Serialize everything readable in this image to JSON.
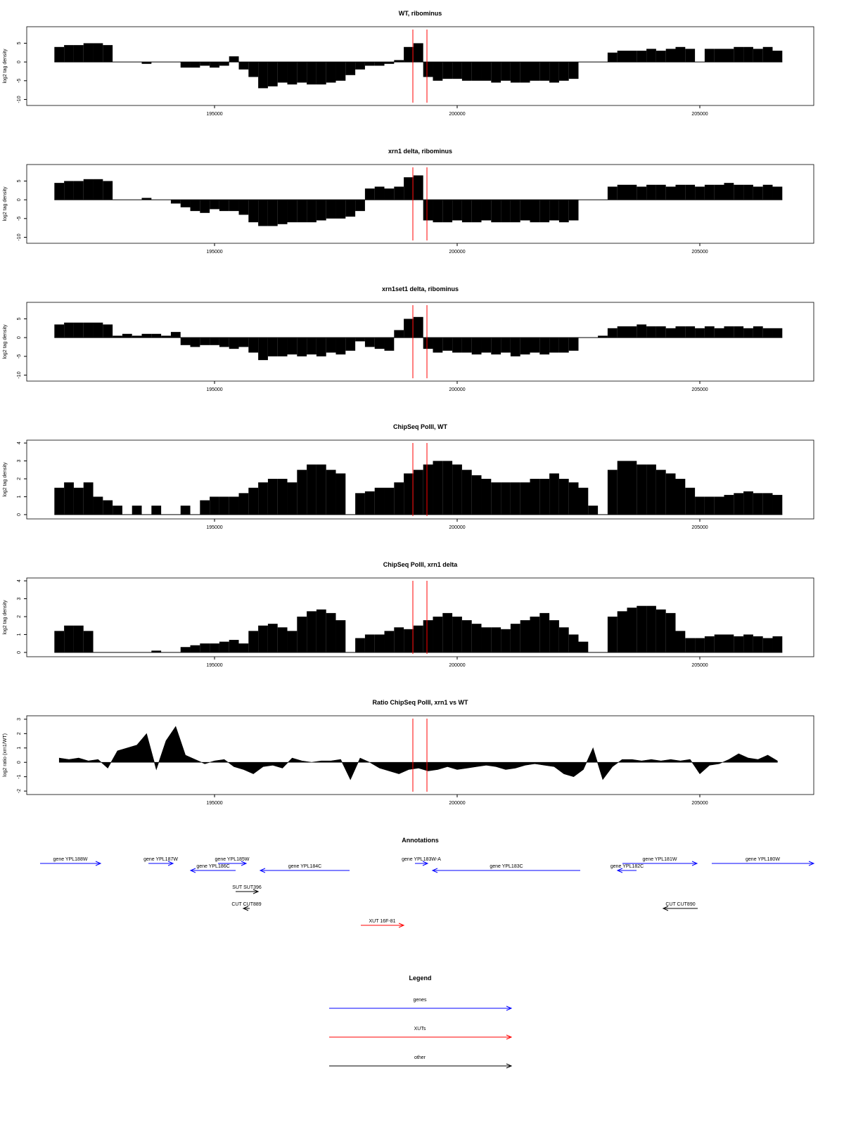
{
  "chart_data": [
    {
      "type": "bar",
      "title": "WT, ribominus",
      "ylabel": "log2 tag density",
      "color": "#000000",
      "xlim": [
        191130,
        207348
      ],
      "xticks": [
        195000,
        200000,
        205000
      ],
      "ylim": [
        -11.6,
        9.4
      ],
      "yticks": [
        -10,
        -5,
        0,
        5
      ],
      "highlight_x": [
        199087,
        199377
      ],
      "highlight_color": "#ff0000",
      "x": [
        191800,
        192000,
        192200,
        192400,
        192600,
        192800,
        193000,
        193200,
        193400,
        193600,
        193800,
        194000,
        194200,
        194400,
        194600,
        194800,
        195000,
        195200,
        195400,
        195600,
        195800,
        196000,
        196200,
        196400,
        196600,
        196800,
        197000,
        197200,
        197400,
        197600,
        197800,
        198000,
        198200,
        198400,
        198600,
        198800,
        199000,
        199200,
        199400,
        199600,
        199800,
        200000,
        200200,
        200400,
        200600,
        200800,
        201000,
        201200,
        201400,
        201600,
        201800,
        202000,
        202200,
        202400,
        202600,
        202800,
        203000,
        203200,
        203400,
        203600,
        203800,
        204000,
        204200,
        204400,
        204600,
        204800,
        205000,
        205200,
        205400,
        205600,
        205800,
        206000,
        206200,
        206400,
        206600
      ],
      "values": [
        4,
        4.5,
        4.5,
        5,
        5,
        4.5,
        0,
        0,
        0,
        -0.5,
        0,
        0,
        0,
        -1.5,
        -1.5,
        -1,
        -1.5,
        -1,
        1.5,
        -2,
        -4,
        -7,
        -6.5,
        -5.5,
        -6,
        -5.5,
        -6,
        -6,
        -5.5,
        -5,
        -3.5,
        -2,
        -1,
        -1,
        -0.5,
        0.5,
        4,
        5,
        -4,
        -5,
        -4.5,
        -4.5,
        -5,
        -5,
        -5,
        -5.5,
        -5,
        -5.5,
        -5.5,
        -5,
        -5,
        -5.5,
        -5,
        -4.5,
        0,
        0,
        0,
        2.5,
        3,
        3,
        3,
        3.5,
        3,
        3.5,
        4,
        3.5,
        0,
        3.5,
        3.5,
        3.5,
        4,
        4,
        3.5,
        4,
        3
      ]
    },
    {
      "type": "bar",
      "title": "xrn1 delta, ribominus",
      "ylabel": "log2 tag density",
      "color": "#000000",
      "xlim": [
        191130,
        207348
      ],
      "xticks": [
        195000,
        200000,
        205000
      ],
      "ylim": [
        -11.6,
        9.4
      ],
      "yticks": [
        -10,
        -5,
        0,
        5
      ],
      "highlight_x": [
        199087,
        199377
      ],
      "highlight_color": "#ff0000",
      "x": [
        191800,
        192000,
        192200,
        192400,
        192600,
        192800,
        193000,
        193200,
        193400,
        193600,
        193800,
        194000,
        194200,
        194400,
        194600,
        194800,
        195000,
        195200,
        195400,
        195600,
        195800,
        196000,
        196200,
        196400,
        196600,
        196800,
        197000,
        197200,
        197400,
        197600,
        197800,
        198000,
        198200,
        198400,
        198600,
        198800,
        199000,
        199200,
        199400,
        199600,
        199800,
        200000,
        200200,
        200400,
        200600,
        200800,
        201000,
        201200,
        201400,
        201600,
        201800,
        202000,
        202200,
        202400,
        202600,
        202800,
        203000,
        203200,
        203400,
        203600,
        203800,
        204000,
        204200,
        204400,
        204600,
        204800,
        205000,
        205200,
        205400,
        205600,
        205800,
        206000,
        206200,
        206400,
        206600
      ],
      "values": [
        4.5,
        5,
        5,
        5.5,
        5.5,
        5,
        0,
        0,
        0,
        0.5,
        0,
        0,
        -1,
        -2,
        -3,
        -3.5,
        -2.5,
        -3,
        -3,
        -4,
        -6,
        -7,
        -7,
        -6.5,
        -6,
        -6,
        -6,
        -5.5,
        -5,
        -5,
        -4.5,
        -3,
        3,
        3.5,
        3,
        3.5,
        6,
        6.5,
        -5.5,
        -6,
        -6,
        -5.5,
        -6,
        -6,
        -5.5,
        -6,
        -6,
        -6,
        -5.5,
        -6,
        -6,
        -5.5,
        -6,
        -5.5,
        0,
        0,
        0,
        3.5,
        4,
        4,
        3.5,
        4,
        4,
        3.5,
        4,
        4,
        3.5,
        4,
        4,
        4.5,
        4,
        4,
        3.5,
        4,
        3.5
      ]
    },
    {
      "type": "bar",
      "title": "xrn1set1 delta, ribominus",
      "ylabel": "log2 tag density",
      "color": "#000000",
      "xlim": [
        191130,
        207348
      ],
      "xticks": [
        195000,
        200000,
        205000
      ],
      "ylim": [
        -11.6,
        9.4
      ],
      "yticks": [
        -10,
        -5,
        0,
        5
      ],
      "highlight_x": [
        199087,
        199377
      ],
      "highlight_color": "#ff0000",
      "x": [
        191800,
        192000,
        192200,
        192400,
        192600,
        192800,
        193000,
        193200,
        193400,
        193600,
        193800,
        194000,
        194200,
        194400,
        194600,
        194800,
        195000,
        195200,
        195400,
        195600,
        195800,
        196000,
        196200,
        196400,
        196600,
        196800,
        197000,
        197200,
        197400,
        197600,
        197800,
        198000,
        198200,
        198400,
        198600,
        198800,
        199000,
        199200,
        199400,
        199600,
        199800,
        200000,
        200200,
        200400,
        200600,
        200800,
        201000,
        201200,
        201400,
        201600,
        201800,
        202000,
        202200,
        202400,
        202600,
        202800,
        203000,
        203200,
        203400,
        203600,
        203800,
        204000,
        204200,
        204400,
        204600,
        204800,
        205000,
        205200,
        205400,
        205600,
        205800,
        206000,
        206200,
        206400,
        206600
      ],
      "values": [
        3.5,
        4,
        4,
        4,
        4,
        3.5,
        0.5,
        1,
        0.5,
        1,
        1,
        0.5,
        1.5,
        -2,
        -2.5,
        -2,
        -2,
        -2.5,
        -3,
        -2.5,
        -4,
        -6,
        -5,
        -5,
        -4.5,
        -5,
        -4.5,
        -5,
        -4,
        -4.5,
        -3.5,
        -1,
        -2.5,
        -3,
        -3.5,
        2,
        5,
        5.5,
        -3,
        -4,
        -3.5,
        -4,
        -4,
        -4.5,
        -4,
        -4.5,
        -4,
        -5,
        -4.5,
        -4,
        -4.5,
        -4,
        -4,
        -3.5,
        0,
        0,
        0.5,
        2.5,
        3,
        3,
        3.5,
        3,
        3,
        2.5,
        3,
        3,
        2.5,
        3,
        2.5,
        3,
        3,
        2.5,
        3,
        2.5,
        2.5
      ]
    },
    {
      "type": "bar",
      "title": "ChipSeq PolII, WT",
      "ylabel": "log2 tag density",
      "color": "#000000",
      "xlim": [
        191130,
        207348
      ],
      "xticks": [
        195000,
        200000,
        205000
      ],
      "ylim": [
        -0.24,
        4.16
      ],
      "yticks": [
        0,
        1,
        2,
        3,
        4
      ],
      "highlight_x": [
        199087,
        199377
      ],
      "highlight_color": "#ff0000",
      "x": [
        191800,
        192000,
        192200,
        192400,
        192600,
        192800,
        193000,
        193200,
        193400,
        193600,
        193800,
        194000,
        194200,
        194400,
        194600,
        194800,
        195000,
        195200,
        195400,
        195600,
        195800,
        196000,
        196200,
        196400,
        196600,
        196800,
        197000,
        197200,
        197400,
        197600,
        197800,
        198000,
        198200,
        198400,
        198600,
        198800,
        199000,
        199200,
        199400,
        199600,
        199800,
        200000,
        200200,
        200400,
        200600,
        200800,
        201000,
        201200,
        201400,
        201600,
        201800,
        202000,
        202200,
        202400,
        202600,
        202800,
        203000,
        203200,
        203400,
        203600,
        203800,
        204000,
        204200,
        204400,
        204600,
        204800,
        205000,
        205200,
        205400,
        205600,
        205800,
        206000,
        206200,
        206400,
        206600
      ],
      "values": [
        1.5,
        1.8,
        1.5,
        1.8,
        1,
        0.8,
        0.5,
        0,
        0.5,
        0,
        0.5,
        0,
        0,
        0.5,
        0,
        0.8,
        1,
        1,
        1,
        1.2,
        1.5,
        1.8,
        2,
        2,
        1.8,
        2.5,
        2.8,
        2.8,
        2.5,
        2.3,
        0,
        1.2,
        1.3,
        1.5,
        1.5,
        1.8,
        2.3,
        2.5,
        2.8,
        3,
        3,
        2.8,
        2.5,
        2.2,
        2,
        1.8,
        1.8,
        1.8,
        1.8,
        2,
        2,
        2.3,
        2,
        1.8,
        1.5,
        0.5,
        0,
        2.5,
        3,
        3,
        2.8,
        2.8,
        2.5,
        2.3,
        2,
        1.5,
        1,
        1,
        1,
        1.1,
        1.2,
        1.3,
        1.2,
        1.2,
        1.1
      ]
    },
    {
      "type": "bar",
      "title": "ChipSeq PolII, xrn1 delta",
      "ylabel": "log2 tag density",
      "color": "#000000",
      "xlim": [
        191130,
        207348
      ],
      "xticks": [
        195000,
        200000,
        205000
      ],
      "ylim": [
        -0.24,
        4.16
      ],
      "yticks": [
        0,
        1,
        2,
        3,
        4
      ],
      "highlight_x": [
        199087,
        199377
      ],
      "highlight_color": "#ff0000",
      "x": [
        191800,
        192000,
        192200,
        192400,
        192600,
        192800,
        193000,
        193200,
        193400,
        193600,
        193800,
        194000,
        194200,
        194400,
        194600,
        194800,
        195000,
        195200,
        195400,
        195600,
        195800,
        196000,
        196200,
        196400,
        196600,
        196800,
        197000,
        197200,
        197400,
        197600,
        197800,
        198000,
        198200,
        198400,
        198600,
        198800,
        199000,
        199200,
        199400,
        199600,
        199800,
        200000,
        200200,
        200400,
        200600,
        200800,
        201000,
        201200,
        201400,
        201600,
        201800,
        202000,
        202200,
        202400,
        202600,
        202800,
        203000,
        203200,
        203400,
        203600,
        203800,
        204000,
        204200,
        204400,
        204600,
        204800,
        205000,
        205200,
        205400,
        205600,
        205800,
        206000,
        206200,
        206400,
        206600
      ],
      "values": [
        1.2,
        1.5,
        1.5,
        1.2,
        0,
        0,
        0,
        0,
        0,
        0,
        0.1,
        0,
        0,
        0.3,
        0.4,
        0.5,
        0.5,
        0.6,
        0.7,
        0.5,
        1.2,
        1.5,
        1.6,
        1.4,
        1.2,
        2,
        2.3,
        2.4,
        2.2,
        1.8,
        0,
        0.8,
        1,
        1,
        1.2,
        1.4,
        1.3,
        1.5,
        1.8,
        2,
        2.2,
        2,
        1.8,
        1.6,
        1.4,
        1.4,
        1.3,
        1.6,
        1.8,
        2,
        2.2,
        1.8,
        1.4,
        1,
        0.6,
        0,
        0,
        2,
        2.3,
        2.5,
        2.6,
        2.6,
        2.4,
        2.2,
        1.2,
        0.8,
        0.8,
        0.9,
        1,
        1,
        0.9,
        1,
        0.9,
        0.8,
        0.9
      ]
    },
    {
      "type": "area",
      "title": "Ratio ChipSeq PolII, xrn1 vs WT",
      "ylabel": "log2 ratio (xrn1/WT)",
      "color": "#000000",
      "xlim": [
        191130,
        207348
      ],
      "xticks": [
        195000,
        200000,
        205000
      ],
      "ylim": [
        -2.24,
        3.24
      ],
      "yticks": [
        -2,
        -1,
        0,
        1,
        2,
        3
      ],
      "highlight_x": [
        199087,
        199377
      ],
      "highlight_color": "#ff0000",
      "x": [
        191800,
        192000,
        192200,
        192400,
        192600,
        192800,
        193000,
        193200,
        193400,
        193600,
        193800,
        194000,
        194200,
        194400,
        194600,
        194800,
        195000,
        195200,
        195400,
        195600,
        195800,
        196000,
        196200,
        196400,
        196600,
        196800,
        197000,
        197200,
        197400,
        197600,
        197800,
        198000,
        198200,
        198400,
        198600,
        198800,
        199000,
        199200,
        199400,
        199600,
        199800,
        200000,
        200200,
        200400,
        200600,
        200800,
        201000,
        201200,
        201400,
        201600,
        201800,
        202000,
        202200,
        202400,
        202600,
        202800,
        203000,
        203200,
        203400,
        203600,
        203800,
        204000,
        204200,
        204400,
        204600,
        204800,
        205000,
        205200,
        205400,
        205600,
        205800,
        206000,
        206200,
        206400,
        206600
      ],
      "values": [
        0.3,
        0.2,
        0.3,
        0.1,
        0.2,
        -0.4,
        0.8,
        1,
        1.2,
        2,
        -0.5,
        1.5,
        2.5,
        0.5,
        0.2,
        -0.1,
        0.1,
        0.2,
        -0.3,
        -0.5,
        -0.8,
        -0.3,
        -0.2,
        -0.4,
        0.3,
        0.1,
        0,
        0.1,
        0.1,
        0.2,
        -1.2,
        0.3,
        0,
        -0.4,
        -0.6,
        -0.8,
        -0.5,
        -0.4,
        -0.6,
        -0.5,
        -0.3,
        -0.5,
        -0.4,
        -0.3,
        -0.2,
        -0.3,
        -0.5,
        -0.4,
        -0.2,
        -0.1,
        -0.2,
        -0.3,
        -0.8,
        -1,
        -0.5,
        1,
        -1.2,
        -0.3,
        0.2,
        0.2,
        0.1,
        0.2,
        0.1,
        0.2,
        0.1,
        0.2,
        -0.8,
        -0.2,
        -0.1,
        0.2,
        0.6,
        0.3,
        0.2,
        0.5,
        0.1
      ]
    }
  ],
  "annotations": {
    "title": "Annotations",
    "xlim": [
      191130,
      207348
    ],
    "features": [
      {
        "label": "gene YPL188W",
        "start": 191405,
        "end": 192652,
        "strand": "+",
        "color": "#0000ff"
      },
      {
        "label": "gene YPL187W",
        "start": 193638,
        "end": 194145,
        "strand": "+",
        "color": "#0000ff"
      },
      {
        "label": "gene YPL186C",
        "start": 194507,
        "end": 195435,
        "strand": "-",
        "color": "#0000ff"
      },
      {
        "label": "gene YPL185W",
        "start": 195072,
        "end": 195652,
        "strand": "+",
        "color": "#0000ff"
      },
      {
        "label": "gene YPL184C",
        "start": 195942,
        "end": 197783,
        "strand": "-",
        "color": "#0000ff"
      },
      {
        "label": "gene YPL183W-A",
        "start": 199130,
        "end": 199391,
        "strand": "+",
        "color": "#0000ff"
      },
      {
        "label": "gene YPL183C",
        "start": 199493,
        "end": 202536,
        "strand": "-",
        "color": "#0000ff"
      },
      {
        "label": "gene YPL182C",
        "start": 203304,
        "end": 203696,
        "strand": "-",
        "color": "#0000ff"
      },
      {
        "label": "gene YPL181W",
        "start": 203406,
        "end": 204942,
        "strand": "+",
        "color": "#0000ff"
      },
      {
        "label": "gene YPL180W",
        "start": 205246,
        "end": 207348,
        "strand": "+",
        "color": "#0000ff"
      },
      {
        "label": "SUT SUT396",
        "start": 195435,
        "end": 195899,
        "strand": "+",
        "color": "#000000"
      },
      {
        "label": "CUT CUT889",
        "start": 195594,
        "end": 195725,
        "strand": "-",
        "color": "#000000"
      },
      {
        "label": "CUT CUT890",
        "start": 204246,
        "end": 204957,
        "strand": "-",
        "color": "#000000"
      },
      {
        "label": "XUT 16F-81",
        "start": 198014,
        "end": 198899,
        "strand": "+",
        "color": "#ff0000"
      }
    ]
  },
  "legend": {
    "title": "Legend",
    "items": [
      {
        "label": "genes",
        "color": "#0000ff"
      },
      {
        "label": "XUTs",
        "color": "#ff0000"
      },
      {
        "label": "other",
        "color": "#000000"
      }
    ]
  }
}
